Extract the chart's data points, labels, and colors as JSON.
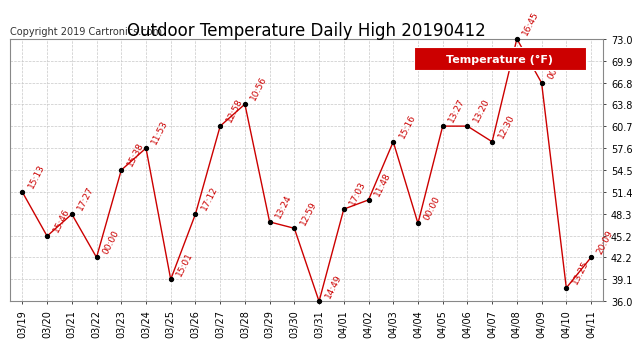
{
  "title": "Outdoor Temperature Daily High 20190412",
  "copyright": "Copyright 2019 Cartronics.com",
  "legend_label": "Temperature (°F)",
  "dates": [
    "03/19",
    "03/20",
    "03/21",
    "03/22",
    "03/23",
    "03/24",
    "03/25",
    "03/26",
    "03/27",
    "03/28",
    "03/29",
    "03/30",
    "03/31",
    "04/01",
    "04/02",
    "04/03",
    "04/04",
    "04/05",
    "04/06",
    "04/07",
    "04/08",
    "04/09",
    "04/10",
    "04/11"
  ],
  "values": [
    51.4,
    45.2,
    48.3,
    42.2,
    54.5,
    57.6,
    39.1,
    48.3,
    60.7,
    63.8,
    47.2,
    46.3,
    36.0,
    49.0,
    50.3,
    58.5,
    47.0,
    60.7,
    60.7,
    58.5,
    73.0,
    66.8,
    37.9,
    42.2
  ],
  "annotations": [
    "15:13",
    "15:46",
    "17:27",
    "00:00",
    "15:38",
    "11:53",
    "15:01",
    "17:12",
    "12:58",
    "10:56",
    "13:24",
    "12:59",
    "14:49",
    "17:03",
    "11:48",
    "15:16",
    "00:00",
    "13:27",
    "13:20",
    "12:30",
    "16:45",
    "00:00",
    "13:25",
    "20:09"
  ],
  "line_color": "#cc0000",
  "marker_color": "#000000",
  "annotation_color": "#cc0000",
  "background_color": "#ffffff",
  "grid_color": "#c8c8c8",
  "legend_bg": "#cc0000",
  "legend_fg": "#ffffff",
  "ylim": [
    36.0,
    73.0
  ],
  "yticks": [
    36.0,
    39.1,
    42.2,
    45.2,
    48.3,
    51.4,
    54.5,
    57.6,
    60.7,
    63.8,
    66.8,
    69.9,
    73.0
  ],
  "title_fontsize": 12,
  "copyright_fontsize": 7,
  "annotation_fontsize": 6.5,
  "tick_fontsize": 7,
  "legend_fontsize": 8
}
